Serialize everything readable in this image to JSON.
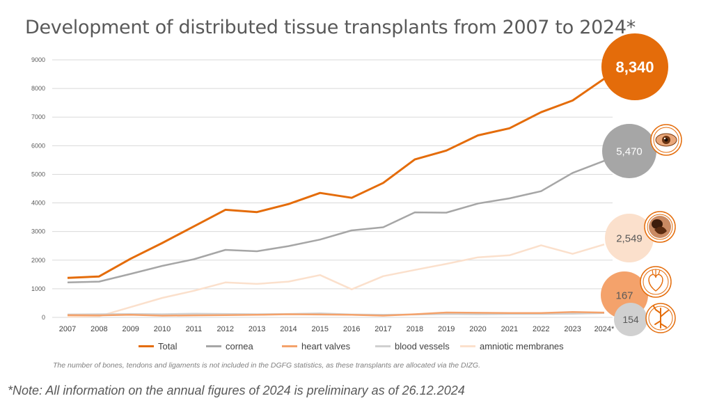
{
  "page": {
    "title": "Development of distributed tissue transplants from 2007 to 2024*",
    "footnote": "The number of bones, tendons and ligaments is not included in the DGFG statistics, as these transplants are allocated via the DIZG.",
    "note": "*Note: All information on the annual figures of 2024 is preliminary as of 26.12.2024"
  },
  "chart_data": {
    "type": "line",
    "categories": [
      "2007",
      "2008",
      "2009",
      "2010",
      "2011",
      "2012",
      "2013",
      "2014",
      "2015",
      "2016",
      "2017",
      "2018",
      "2019",
      "2020",
      "2021",
      "2022",
      "2023",
      "2024*"
    ],
    "yticks": [
      "0",
      "1000",
      "2000",
      "3000",
      "4000",
      "5000",
      "6000",
      "7000",
      "8000",
      "9000"
    ],
    "ylim": [
      0,
      9000
    ],
    "grid": true,
    "legend_position": "bottom",
    "series": [
      {
        "name": "Total",
        "color": "#e46c0a",
        "values": [
          1380,
          1430,
          2050,
          2600,
          3180,
          3760,
          3680,
          3960,
          4350,
          4180,
          4700,
          5520,
          5830,
          6360,
          6610,
          7170,
          7580,
          8340
        ]
      },
      {
        "name": "cornea",
        "color": "#a6a6a6",
        "values": [
          1220,
          1250,
          1520,
          1800,
          2030,
          2360,
          2310,
          2490,
          2720,
          3040,
          3150,
          3670,
          3660,
          3980,
          4160,
          4410,
          5050,
          5470
        ]
      },
      {
        "name": "heart valves",
        "color": "#f4a26b",
        "values": [
          80,
          70,
          90,
          60,
          70,
          80,
          90,
          110,
          100,
          90,
          60,
          110,
          170,
          160,
          150,
          150,
          190,
          167
        ]
      },
      {
        "name": "blood vessels",
        "color": "#d0d0d0",
        "values": [
          100,
          110,
          120,
          110,
          130,
          120,
          110,
          120,
          140,
          100,
          90,
          100,
          120,
          110,
          120,
          120,
          130,
          154
        ]
      },
      {
        "name": "amniotic membranes",
        "color": "#fbe0cc",
        "values": [
          20,
          40,
          360,
          680,
          930,
          1220,
          1170,
          1250,
          1480,
          980,
          1440,
          1660,
          1870,
          2100,
          2170,
          2520,
          2220,
          2549
        ]
      }
    ],
    "bubbles": [
      {
        "label": "8,340",
        "series": "Total",
        "color": "#e46c0a",
        "text_color": "#ffffff",
        "value": 8340
      },
      {
        "label": "5,470",
        "series": "cornea",
        "color": "#a6a6a6",
        "text_color": "#ffffff",
        "value": 5470
      },
      {
        "label": "2,549",
        "series": "amniotic membranes",
        "color": "#fbe0cc",
        "text_color": "#595959",
        "value": 2549
      },
      {
        "label": "167",
        "series": "heart valves",
        "color": "#f4a26b",
        "text_color": "#595959",
        "value": 167
      },
      {
        "label": "154",
        "series": "blood vessels",
        "color": "#d0d0d0",
        "text_color": "#595959",
        "value": 154
      }
    ],
    "icons": [
      "eye-icon",
      "fetus-icon",
      "heart-icon",
      "blood-vessel-icon"
    ]
  }
}
